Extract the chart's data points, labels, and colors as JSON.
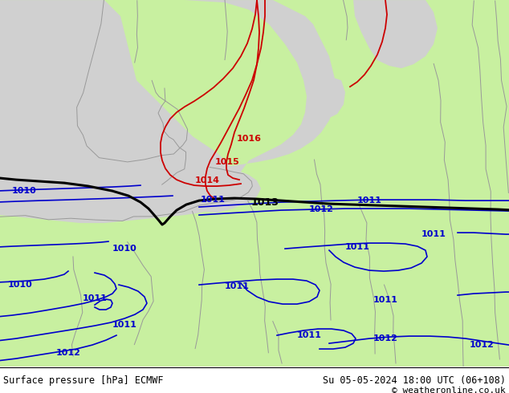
{
  "title_left": "Surface pressure [hPa] ECMWF",
  "title_right": "Su 05-05-2024 18:00 UTC (06+108)",
  "copyright": "© weatheronline.co.uk",
  "land_color": "#c8f0a0",
  "sea_color": "#d0d0d0",
  "border_color": "#999999",
  "isobar_blue": "#0000cc",
  "isobar_red": "#cc0000",
  "isobar_black": "#000000",
  "label_fs": 8,
  "figsize": [
    6.34,
    4.9
  ],
  "dpi": 100
}
